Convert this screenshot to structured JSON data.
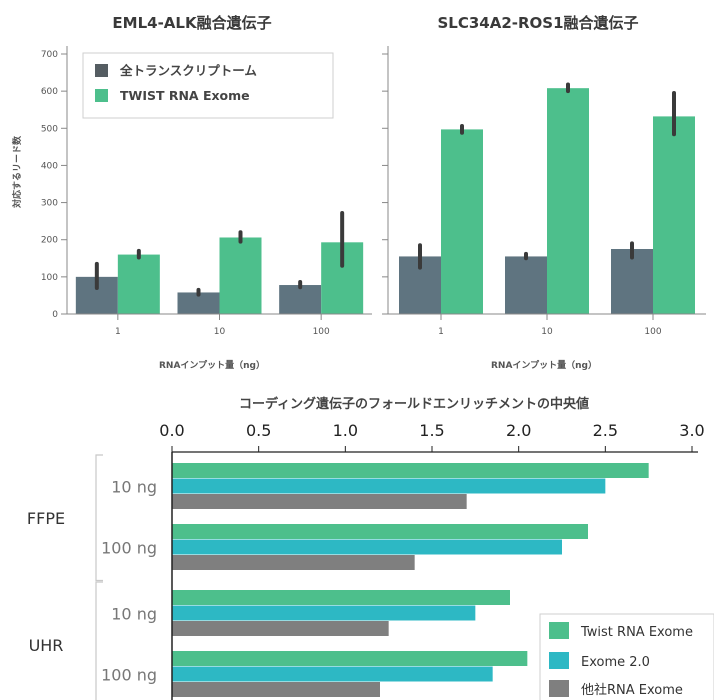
{
  "chart_data": [
    {
      "type": "bar",
      "title": "EML4-ALK融合遺伝子",
      "xlabel": "RNAインプット量（ng）",
      "ylabel": "対応するリード数",
      "ylim": [
        0,
        700
      ],
      "yticks": [
        0,
        100,
        200,
        300,
        400,
        500,
        600,
        700
      ],
      "categories": [
        "1",
        "10",
        "100"
      ],
      "series": [
        {
          "name": "全トランスクリプトーム",
          "color": "#5f7480",
          "values": [
            100,
            58,
            78
          ],
          "errors": [
            [
              70,
              135
            ],
            [
              52,
              65
            ],
            [
              72,
              86
            ]
          ]
        },
        {
          "name": "TWIST RNA Exome",
          "color": "#4dbf8c",
          "values": [
            160,
            206,
            193
          ],
          "errors": [
            [
              152,
              170
            ],
            [
              195,
              220
            ],
            [
              130,
              272
            ]
          ]
        }
      ],
      "legend": "top-left",
      "grid": false
    },
    {
      "type": "bar",
      "title": "SLC34A2-ROS1融合遺伝子",
      "xlabel": "RNAインプット量（ng）",
      "ylabel": "",
      "ylim": [
        0,
        700
      ],
      "categories": [
        "1",
        "10",
        "100"
      ],
      "series": [
        {
          "name": "全トランスクリプトーム",
          "color": "#5f7480",
          "values": [
            155,
            155,
            175
          ],
          "errors": [
            [
              125,
              185
            ],
            [
              150,
              162
            ],
            [
              152,
              190
            ]
          ]
        },
        {
          "name": "TWIST RNA Exome",
          "color": "#4dbf8c",
          "values": [
            497,
            608,
            532
          ],
          "errors": [
            [
              488,
              506
            ],
            [
              600,
              618
            ],
            [
              484,
              595
            ]
          ]
        }
      ],
      "grid": false
    },
    {
      "type": "bar",
      "orientation": "horizontal",
      "title": "コーディング遺伝子のフォールドエンリッチメントの中央値",
      "xlim": [
        0,
        3.0
      ],
      "xticks": [
        "0.0",
        "0.5",
        "1.0",
        "1.5",
        "2.0",
        "2.5",
        "3.0"
      ],
      "groups": [
        {
          "label": "FFPE",
          "categories": [
            "10 ng",
            "100 ng"
          ]
        },
        {
          "label": "UHR",
          "categories": [
            "10 ng",
            "100 ng"
          ]
        }
      ],
      "series": [
        {
          "name": "Twist RNA Exome",
          "color": "#4dbf8c",
          "values": [
            2.75,
            2.4,
            1.95,
            2.05
          ]
        },
        {
          "name": "Exome 2.0",
          "color": "#2db8c4",
          "values": [
            2.5,
            2.25,
            1.75,
            1.85
          ]
        },
        {
          "name": "他社RNA Exome",
          "color": "#7f7f7f",
          "values": [
            1.7,
            1.4,
            1.25,
            1.2
          ]
        }
      ],
      "legend": "bottom-right"
    }
  ]
}
